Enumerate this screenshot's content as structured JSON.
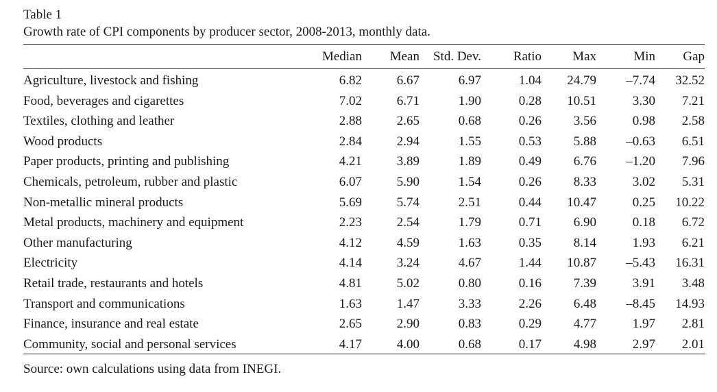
{
  "table": {
    "label": "Table 1",
    "caption": "Growth rate of CPI components by producer sector, 2008-2013, monthly data.",
    "columns": [
      "",
      "Median",
      "Mean",
      "Std. Dev.",
      "Ratio",
      "Max",
      "Min",
      "Gap"
    ],
    "rows": [
      {
        "sector": "Agriculture, livestock and fishing",
        "values": [
          "6.82",
          "6.67",
          "6.97",
          "1.04",
          "24.79",
          "–7.74",
          "32.52"
        ]
      },
      {
        "sector": "Food, beverages and cigarettes",
        "values": [
          "7.02",
          "6.71",
          "1.90",
          "0.28",
          "10.51",
          "3.30",
          "7.21"
        ]
      },
      {
        "sector": "Textiles, clothing and leather",
        "values": [
          "2.88",
          "2.65",
          "0.68",
          "0.26",
          "3.56",
          "0.98",
          "2.58"
        ]
      },
      {
        "sector": "Wood products",
        "values": [
          "2.84",
          "2.94",
          "1.55",
          "0.53",
          "5.88",
          "–0.63",
          "6.51"
        ]
      },
      {
        "sector": "Paper products, printing and publishing",
        "values": [
          "4.21",
          "3.89",
          "1.89",
          "0.49",
          "6.76",
          "–1.20",
          "7.96"
        ]
      },
      {
        "sector": "Chemicals, petroleum, rubber and plastic",
        "values": [
          "6.07",
          "5.90",
          "1.54",
          "0.26",
          "8.33",
          "3.02",
          "5.31"
        ]
      },
      {
        "sector": "Non-metallic mineral products",
        "values": [
          "5.69",
          "5.74",
          "2.51",
          "0.44",
          "10.47",
          "0.25",
          "10.22"
        ]
      },
      {
        "sector": "Metal products, machinery and equipment",
        "values": [
          "2.23",
          "2.54",
          "1.79",
          "0.71",
          "6.90",
          "0.18",
          "6.72"
        ]
      },
      {
        "sector": "Other manufacturing",
        "values": [
          "4.12",
          "4.59",
          "1.63",
          "0.35",
          "8.14",
          "1.93",
          "6.21"
        ]
      },
      {
        "sector": "Electricity",
        "values": [
          "4.14",
          "3.24",
          "4.67",
          "1.44",
          "10.87",
          "–5.43",
          "16.31"
        ]
      },
      {
        "sector": "Retail trade, restaurants and hotels",
        "values": [
          "4.81",
          "5.02",
          "0.80",
          "0.16",
          "7.39",
          "3.91",
          "3.48"
        ]
      },
      {
        "sector": "Transport and communications",
        "values": [
          "1.63",
          "1.47",
          "3.33",
          "2.26",
          "6.48",
          "–8.45",
          "14.93"
        ]
      },
      {
        "sector": "Finance, insurance and real estate",
        "values": [
          "2.65",
          "2.90",
          "0.83",
          "0.29",
          "4.77",
          "1.97",
          "2.81"
        ]
      },
      {
        "sector": "Community, social and personal services",
        "values": [
          "4.17",
          "4.00",
          "0.68",
          "0.17",
          "4.98",
          "2.97",
          "2.01"
        ]
      }
    ],
    "source": "Source: own calculations using data from INEGI."
  }
}
